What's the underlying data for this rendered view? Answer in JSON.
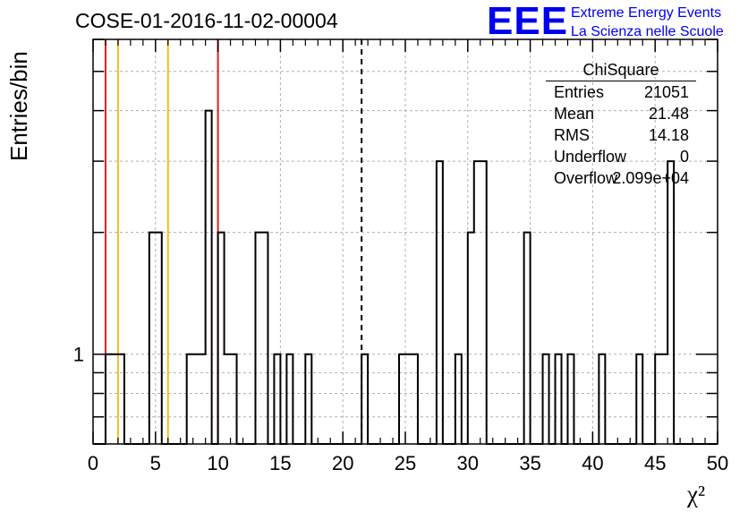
{
  "header": {
    "run_title": "COSE-01-2016-11-02-00004",
    "logo_mark": "EEE",
    "logo_line1": "Extreme Energy Events",
    "logo_line2": "La Scienza nelle Scuole"
  },
  "colors": {
    "histogram": "#000000",
    "red_cut": "#e02020",
    "yellow_cut": "#f0c020",
    "logo": "#0000ee",
    "grid": "#b0b0b0"
  },
  "stats": {
    "title": "ChiSquare",
    "rows": [
      {
        "key": "Entries",
        "value": "21051"
      },
      {
        "key": "Mean",
        "value": "21.48"
      },
      {
        "key": "RMS",
        "value": "14.18"
      },
      {
        "key": "Underflow",
        "value": "0"
      },
      {
        "key": "Overflow",
        "value": "2.099e+04"
      }
    ]
  },
  "chart_data": {
    "type": "histogram",
    "xlabel": "χ²",
    "ylabel": "Entries/bin",
    "xlim": [
      0,
      50
    ],
    "ylog": true,
    "ylim": [
      0.6,
      6
    ],
    "grid": true,
    "bin_width": 0.5,
    "x_ticks": [
      "0",
      "5",
      "10",
      "15",
      "20",
      "25",
      "30",
      "35",
      "40",
      "45",
      "50"
    ],
    "y_tick_label": "1",
    "bins": [
      [
        1.0,
        1
      ],
      [
        1.5,
        1
      ],
      [
        2.0,
        1
      ],
      [
        4.5,
        2
      ],
      [
        5.0,
        2
      ],
      [
        7.5,
        1
      ],
      [
        8.0,
        1
      ],
      [
        8.5,
        1
      ],
      [
        9.0,
        4
      ],
      [
        10.0,
        2
      ],
      [
        10.5,
        1
      ],
      [
        11.0,
        1
      ],
      [
        13.0,
        2
      ],
      [
        13.5,
        2
      ],
      [
        14.5,
        1
      ],
      [
        15.5,
        1
      ],
      [
        17.0,
        1
      ],
      [
        21.5,
        1
      ],
      [
        24.5,
        1
      ],
      [
        25.0,
        1
      ],
      [
        25.5,
        1
      ],
      [
        27.5,
        3
      ],
      [
        29.0,
        1
      ],
      [
        30.0,
        2
      ],
      [
        30.5,
        3
      ],
      [
        31.0,
        3
      ],
      [
        34.5,
        2
      ],
      [
        36.0,
        1
      ],
      [
        37.0,
        1
      ],
      [
        38.0,
        1
      ],
      [
        40.5,
        1
      ],
      [
        43.5,
        1
      ],
      [
        45.0,
        1
      ],
      [
        45.5,
        1
      ],
      [
        46.0,
        3
      ]
    ],
    "red_lines": [
      1,
      10
    ],
    "yellow_lines": [
      2,
      6
    ],
    "mean_line": 21.5
  }
}
